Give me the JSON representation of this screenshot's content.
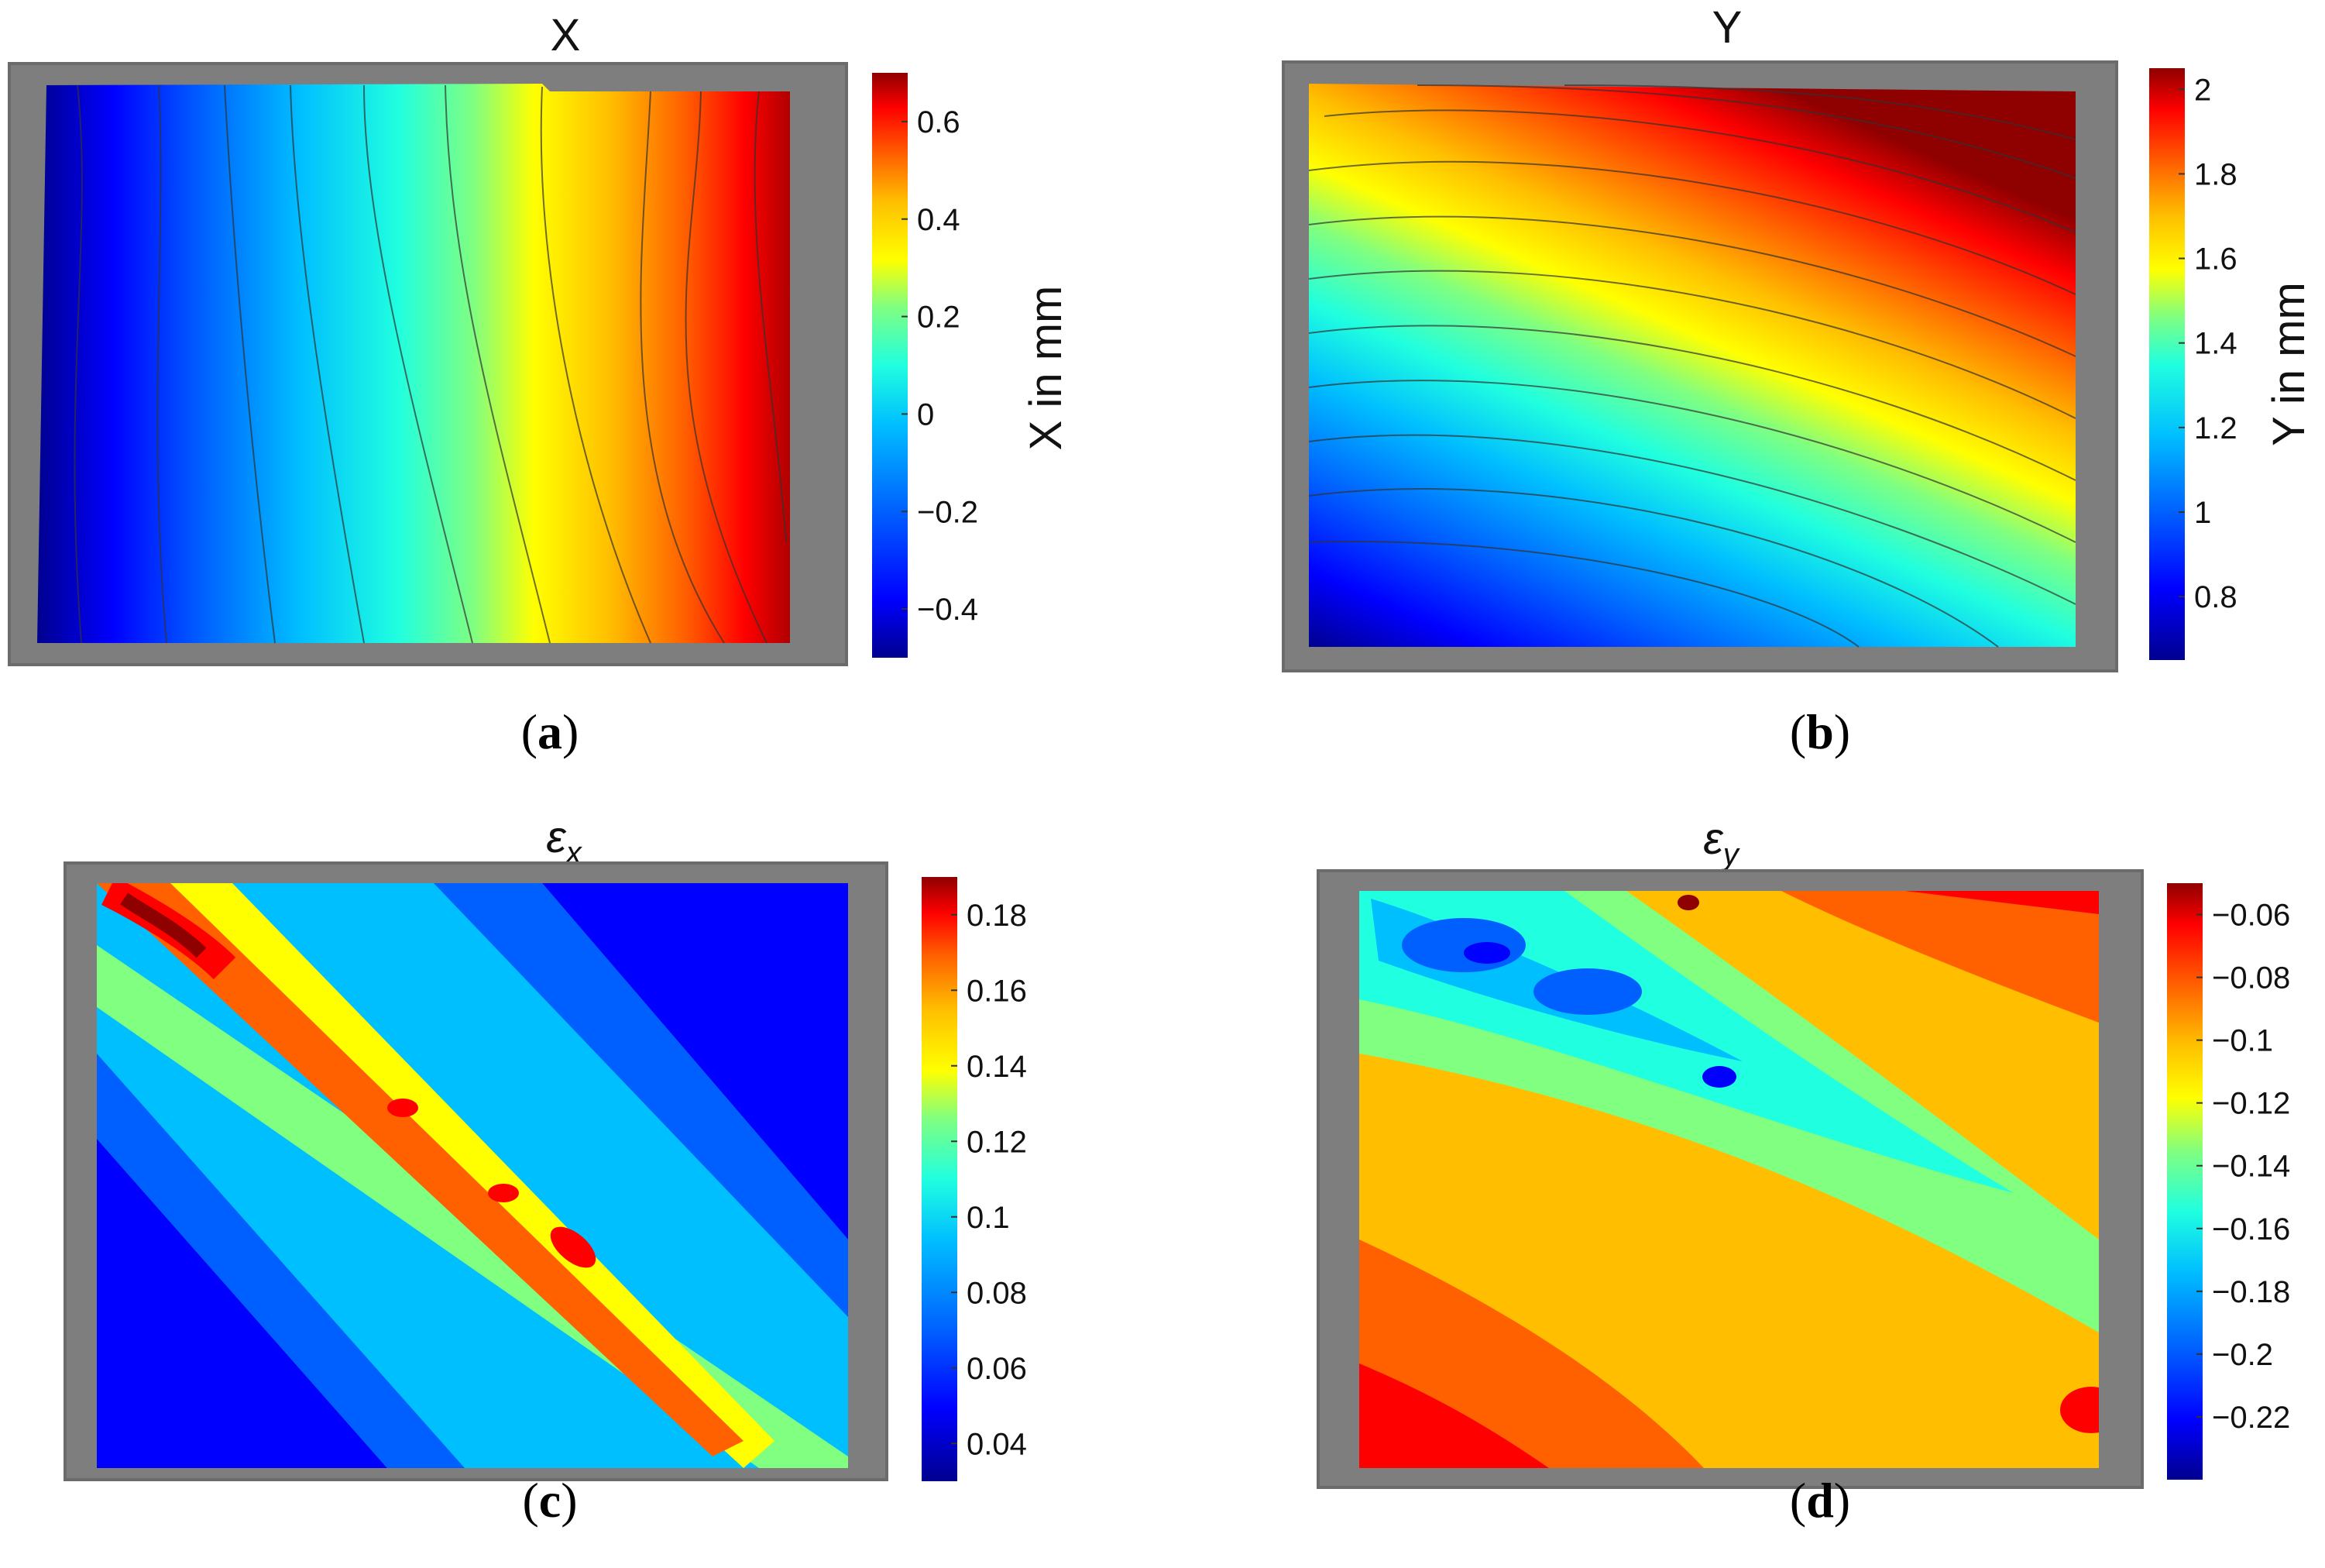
{
  "figure": {
    "panels": [
      {
        "id": "a",
        "label_open": "(",
        "label_letter": "a",
        "label_close": ")"
      },
      {
        "id": "b",
        "label_open": "(",
        "label_letter": "b",
        "label_close": ")"
      },
      {
        "id": "c",
        "label_open": "(",
        "label_letter": "c",
        "label_close": ")"
      },
      {
        "id": "d",
        "label_open": "(",
        "label_letter": "d",
        "label_close": ")"
      }
    ]
  },
  "chart_data": [
    {
      "type": "heatmap",
      "subtype": "filled-contour",
      "title": "X",
      "colorbar_label": "X in mm",
      "unit": "mm",
      "color_range": [
        -0.5,
        0.7
      ],
      "levels": [
        -0.5,
        -0.4,
        -0.3,
        -0.2,
        -0.1,
        0,
        0.1,
        0.2,
        0.3,
        0.4,
        0.5,
        0.6,
        0.7
      ],
      "ticks": [
        -0.4,
        -0.2,
        0,
        0.2,
        0.4,
        0.6
      ],
      "tick_labels": [
        "−0.4",
        "−0.2",
        "0",
        "0.2",
        "0.4",
        "0.6"
      ],
      "field_description": "values increase from left (about -0.45) to right (about 0.6); contours run roughly vertically, tilted"
    },
    {
      "type": "heatmap",
      "subtype": "filled-contour",
      "title": "Y",
      "colorbar_label": "Y in mm",
      "unit": "mm",
      "color_range": [
        0.65,
        2.05
      ],
      "levels": [
        0.7,
        0.8,
        0.9,
        1.0,
        1.1,
        1.2,
        1.3,
        1.4,
        1.5,
        1.6,
        1.7,
        1.8,
        1.9,
        2.0
      ],
      "ticks": [
        0.8,
        1,
        1.2,
        1.4,
        1.6,
        1.8,
        2
      ],
      "tick_labels": [
        "0.8",
        "1",
        "1.2",
        "1.4",
        "1.6",
        "1.8",
        "2"
      ],
      "field_description": "values increase from bottom-left (about 0.7) to top-right (about 2.0); contours are diagonal bands"
    },
    {
      "type": "heatmap",
      "subtype": "filled-contour",
      "title_symbol": "ε",
      "title_subscript": "x",
      "color_range": [
        0.03,
        0.19
      ],
      "levels": [
        0.04,
        0.06,
        0.08,
        0.1,
        0.12,
        0.14,
        0.16,
        0.18
      ],
      "ticks": [
        0.04,
        0.06,
        0.08,
        0.1,
        0.12,
        0.14,
        0.16,
        0.18
      ],
      "tick_labels": [
        "0.04",
        "0.06",
        "0.08",
        "0.1",
        "0.12",
        "0.14",
        "0.16",
        "0.18"
      ],
      "field_description": "strain concentration band running diagonally from top-left (about 0.18) to bottom-right; surrounding values 0.04 to 0.12"
    },
    {
      "type": "heatmap",
      "subtype": "filled-contour",
      "title_symbol": "ε",
      "title_subscript": "y",
      "color_range": [
        -0.24,
        -0.05
      ],
      "levels": [
        -0.22,
        -0.2,
        -0.18,
        -0.16,
        -0.14,
        -0.12,
        -0.1,
        -0.08,
        -0.06
      ],
      "ticks": [
        -0.06,
        -0.08,
        -0.1,
        -0.12,
        -0.14,
        -0.16,
        -0.18,
        -0.2,
        -0.22
      ],
      "tick_labels": [
        "−0.06",
        "−0.08",
        "−0.1",
        "−0.12",
        "−0.14",
        "−0.16",
        "−0.18",
        "−0.2",
        "−0.22"
      ],
      "field_description": "low values (about -0.22) in upper-left diagonal band; high values (about -0.06) toward bottom-left and top-right"
    }
  ],
  "colormap": [
    "#00008f",
    "#0000ff",
    "#0060ff",
    "#00bfff",
    "#20ffdf",
    "#80ff80",
    "#dfff20",
    "#ffbf00",
    "#ff6000",
    "#ff0000",
    "#8f0000"
  ]
}
